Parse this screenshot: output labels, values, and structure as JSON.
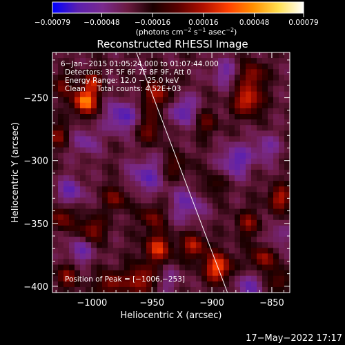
{
  "chart_data": {
    "type": "heatmap",
    "title": "Reconstructed RHESSI Image",
    "xlabel": "Heliocentric X (arcsec)",
    "ylabel": "Heliocentric Y (arcsec)",
    "xlim": [
      -1033,
      -835
    ],
    "ylim": [
      -405,
      -214
    ],
    "x_ticks": [
      {
        "value": -1000,
        "label": "−1000"
      },
      {
        "value": -950,
        "label": "−950"
      },
      {
        "value": -900,
        "label": "−900"
      },
      {
        "value": -850,
        "label": "−850"
      }
    ],
    "y_ticks": [
      {
        "value": -250,
        "label": "−250"
      },
      {
        "value": -300,
        "label": "−300"
      },
      {
        "value": -350,
        "label": "−350"
      },
      {
        "value": -400,
        "label": "−400"
      }
    ],
    "colorbar": {
      "min": -0.00079,
      "max": 0.00079,
      "ticks": [
        {
          "value": -0.00079,
          "label": "−0.00079"
        },
        {
          "value": -0.00048,
          "label": "−0.00048"
        },
        {
          "value": -0.00016,
          "label": "−0.00016"
        },
        {
          "value": 0.00016,
          "label": "0.00016"
        },
        {
          "value": 0.00048,
          "label": "0.00048"
        },
        {
          "value": 0.00079,
          "label": "0.00079"
        }
      ],
      "unit_text": "(photons cm",
      "unit_sup1": "−2",
      "unit_mid": " s",
      "unit_sup2": "−1",
      "unit_end": " asec",
      "unit_sup3": "−2",
      "unit_close": ")",
      "colors": [
        "#0000ff",
        "#5a1fb0",
        "#7a2a8e",
        "#6a1a40",
        "#1a0000",
        "#5a0000",
        "#b01000",
        "#ff4000",
        "#ff9000",
        "#ffe050",
        "#ffffff"
      ]
    },
    "limb_line": {
      "x1": -963,
      "y1": -214,
      "x2": -887,
      "y2": -405
    },
    "peak": {
      "x": -1006,
      "y": -253
    },
    "blobs": [
      {
        "x": -1006,
        "y": -253,
        "amp": 1.0,
        "s": 7
      },
      {
        "x": -1000,
        "y": -238,
        "amp": 0.55,
        "s": 6
      },
      {
        "x": -945,
        "y": -248,
        "amp": 0.55,
        "s": 9
      },
      {
        "x": -952,
        "y": -275,
        "amp": 0.4,
        "s": 8
      },
      {
        "x": -870,
        "y": -252,
        "amp": 0.75,
        "s": 8
      },
      {
        "x": -866,
        "y": -232,
        "amp": 0.55,
        "s": 7
      },
      {
        "x": -905,
        "y": -270,
        "amp": 0.35,
        "s": 7
      },
      {
        "x": -1028,
        "y": -280,
        "amp": 0.45,
        "s": 6
      },
      {
        "x": -1025,
        "y": -240,
        "amp": 0.4,
        "s": 6
      },
      {
        "x": -930,
        "y": -305,
        "amp": 0.35,
        "s": 7
      },
      {
        "x": -843,
        "y": -330,
        "amp": 0.6,
        "s": 7
      },
      {
        "x": -870,
        "y": -350,
        "amp": 0.45,
        "s": 7
      },
      {
        "x": -980,
        "y": -330,
        "amp": 0.45,
        "s": 7
      },
      {
        "x": -1025,
        "y": -345,
        "amp": 0.5,
        "s": 7
      },
      {
        "x": -1000,
        "y": -355,
        "amp": 0.55,
        "s": 7
      },
      {
        "x": -950,
        "y": -345,
        "amp": 0.45,
        "s": 7
      },
      {
        "x": -945,
        "y": -370,
        "amp": 0.7,
        "s": 8
      },
      {
        "x": -915,
        "y": -368,
        "amp": 0.6,
        "s": 7
      },
      {
        "x": -895,
        "y": -385,
        "amp": 0.85,
        "s": 8
      },
      {
        "x": -960,
        "y": -395,
        "amp": 0.65,
        "s": 8
      },
      {
        "x": -985,
        "y": -398,
        "amp": 0.55,
        "s": 7
      },
      {
        "x": -1020,
        "y": -392,
        "amp": 0.45,
        "s": 7
      },
      {
        "x": -858,
        "y": -378,
        "amp": 0.55,
        "s": 7
      },
      {
        "x": -842,
        "y": -395,
        "amp": 0.4,
        "s": 6
      },
      {
        "x": -900,
        "y": -320,
        "amp": 0.3,
        "s": 7
      },
      {
        "x": -975,
        "y": -265,
        "amp": -0.55,
        "s": 9
      },
      {
        "x": -1005,
        "y": -285,
        "amp": -0.35,
        "s": 8
      },
      {
        "x": -1018,
        "y": -325,
        "amp": -0.45,
        "s": 8
      },
      {
        "x": -1010,
        "y": -372,
        "amp": -0.4,
        "s": 8
      },
      {
        "x": -955,
        "y": -312,
        "amp": -0.45,
        "s": 10
      },
      {
        "x": -925,
        "y": -260,
        "amp": -0.5,
        "s": 9
      },
      {
        "x": -920,
        "y": -335,
        "amp": -0.4,
        "s": 10
      },
      {
        "x": -880,
        "y": -300,
        "amp": -0.5,
        "s": 9
      },
      {
        "x": -890,
        "y": -230,
        "amp": -0.35,
        "s": 8
      },
      {
        "x": -855,
        "y": -290,
        "amp": -0.35,
        "s": 8
      },
      {
        "x": -870,
        "y": -400,
        "amp": -0.4,
        "s": 8
      },
      {
        "x": -845,
        "y": -360,
        "amp": -0.3,
        "s": 7
      },
      {
        "x": -935,
        "y": -395,
        "amp": -0.25,
        "s": 7
      }
    ],
    "annotations": {
      "time_range": "6−Jan−2015 01:05:24.000 to 01:07:44.000",
      "detectors": "Detectors: 3F 5F 6F 7F 8F 9F, Att 0",
      "energy": "Energy Range: 12.0 − 25.0 keV",
      "clean": "Clean     Total counts: 4.52E+03",
      "peak_text": "Position of Peak = [−1006,−253]"
    }
  },
  "footer": {
    "timestamp": "17−May−2022 17:17"
  }
}
